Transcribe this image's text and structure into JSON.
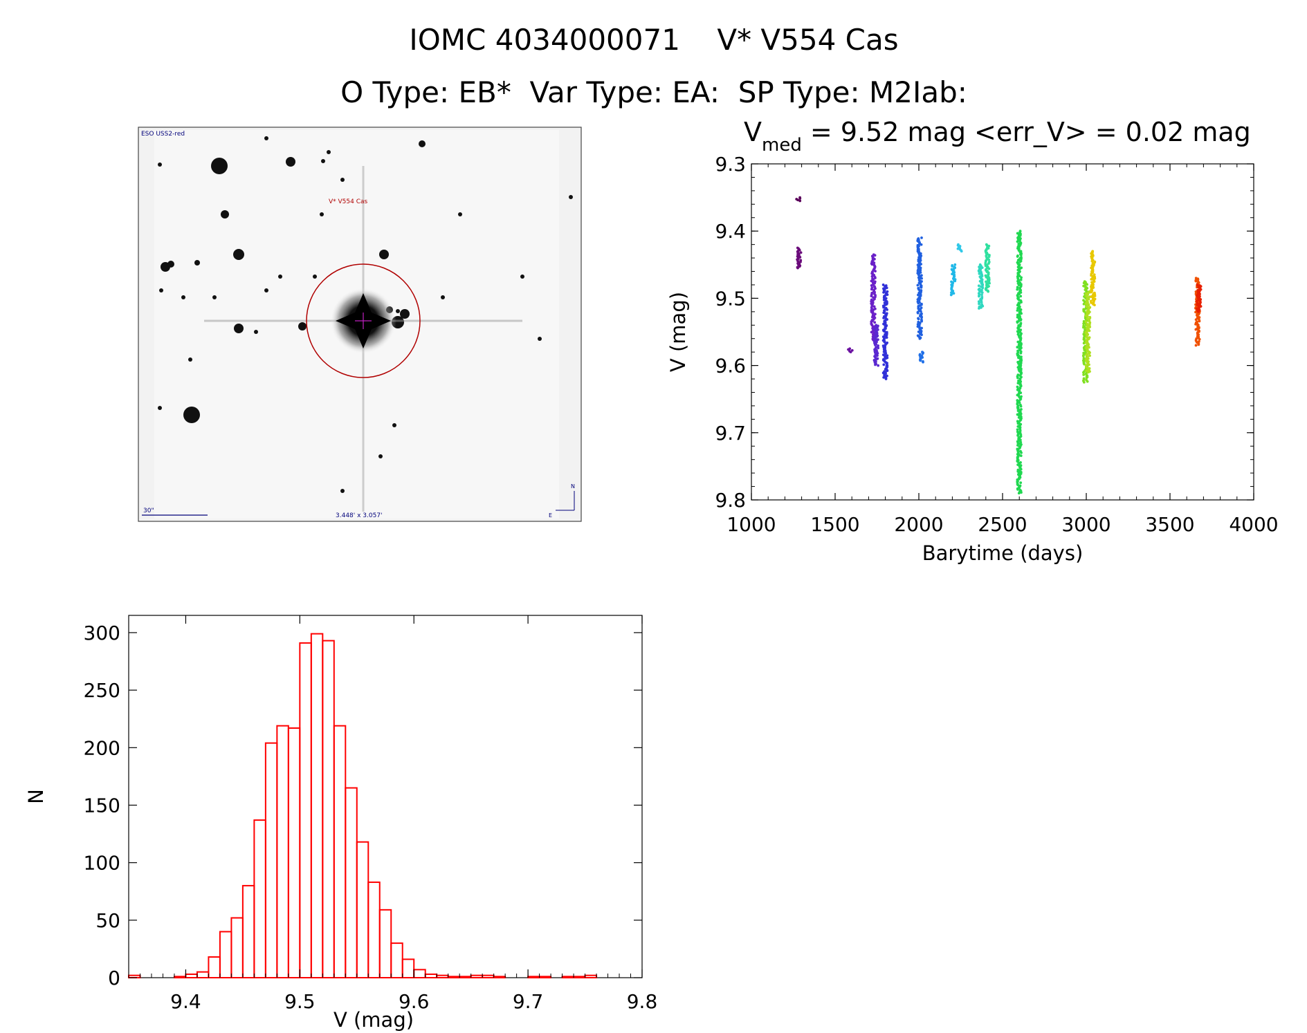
{
  "header": {
    "title_line1": "IOMC 4034000071    V* V554 Cas",
    "title_line2": "O Type: EB*  Var Type: EA:  SP Type: M2Iab:"
  },
  "thumbnail": {
    "survey_label": "ESO USS2-red",
    "object_label": "V* V554 Cas",
    "scale_label": "30\"",
    "size_label": "3.448' x 3.057'",
    "compass_n": "N",
    "compass_e": "E"
  },
  "chart_data": [
    {
      "type": "scatter",
      "title_prefix": "V",
      "title_subscript": "med",
      "title_suffix": " = 9.52 mag <err_V> = 0.02 mag",
      "xlabel": "Barytime (days)",
      "ylabel": "V (mag)",
      "xlim": [
        1000,
        4000
      ],
      "ylim": [
        9.3,
        9.8
      ],
      "y_inverted": true,
      "xticks": [
        1000,
        1500,
        2000,
        2500,
        3000,
        3500,
        4000
      ],
      "yticks": [
        9.3,
        9.4,
        9.5,
        9.6,
        9.7,
        9.8
      ],
      "color_scale": "rainbow by time",
      "groups": [
        {
          "x": 1280,
          "ymin": 9.35,
          "ymax": 9.355,
          "color": "#5a005a"
        },
        {
          "x": 1285,
          "ymin": 9.425,
          "ymax": 9.455,
          "color": "#6a0a7a"
        },
        {
          "x": 1590,
          "ymin": 9.575,
          "ymax": 9.58,
          "color": "#6a10a0"
        },
        {
          "x": 1728,
          "ymin": 9.435,
          "ymax": 9.565,
          "color": "#6a20c8"
        },
        {
          "x": 1745,
          "ymin": 9.54,
          "ymax": 9.6,
          "color": "#5a28d0"
        },
        {
          "x": 1800,
          "ymin": 9.48,
          "ymax": 9.62,
          "color": "#3030d8"
        },
        {
          "x": 2005,
          "ymin": 9.41,
          "ymax": 9.56,
          "color": "#2060e0"
        },
        {
          "x": 2015,
          "ymin": 9.58,
          "ymax": 9.595,
          "color": "#2070e8"
        },
        {
          "x": 2205,
          "ymin": 9.45,
          "ymax": 9.495,
          "color": "#20b8e8"
        },
        {
          "x": 2245,
          "ymin": 9.42,
          "ymax": 9.43,
          "color": "#30c8e8"
        },
        {
          "x": 2370,
          "ymin": 9.45,
          "ymax": 9.515,
          "color": "#30d8c0"
        },
        {
          "x": 2410,
          "ymin": 9.42,
          "ymax": 9.49,
          "color": "#30e0a0"
        },
        {
          "x": 2600,
          "ymin": 9.4,
          "ymax": 9.79,
          "color": "#20d850"
        },
        {
          "x": 2995,
          "ymin": 9.475,
          "ymax": 9.625,
          "color": "#80e020"
        },
        {
          "x": 3010,
          "ymin": 9.49,
          "ymax": 9.61,
          "color": "#b0e020"
        },
        {
          "x": 3040,
          "ymin": 9.43,
          "ymax": 9.51,
          "color": "#e8c800"
        },
        {
          "x": 3665,
          "ymin": 9.47,
          "ymax": 9.57,
          "color": "#f05000"
        },
        {
          "x": 3672,
          "ymin": 9.48,
          "ymax": 9.52,
          "color": "#e82000"
        }
      ]
    },
    {
      "type": "bar",
      "subtype": "histogram",
      "xlabel": "V (mag)",
      "ylabel": "N",
      "xlim": [
        9.35,
        9.8
      ],
      "ylim": [
        0,
        315
      ],
      "xticks": [
        9.4,
        9.5,
        9.6,
        9.7,
        9.8
      ],
      "yticks": [
        0,
        50,
        100,
        150,
        200,
        250,
        300
      ],
      "bin_start": 9.35,
      "bin_width": 0.01,
      "color": "#ff0000",
      "values": [
        2,
        0,
        0,
        0,
        1,
        3,
        5,
        18,
        40,
        52,
        80,
        137,
        204,
        219,
        217,
        291,
        299,
        293,
        219,
        165,
        118,
        83,
        59,
        30,
        16,
        7,
        3,
        2,
        1,
        1,
        2,
        2,
        1,
        0,
        0,
        1,
        1,
        0,
        1,
        1,
        2,
        0,
        0,
        0,
        0
      ]
    }
  ]
}
